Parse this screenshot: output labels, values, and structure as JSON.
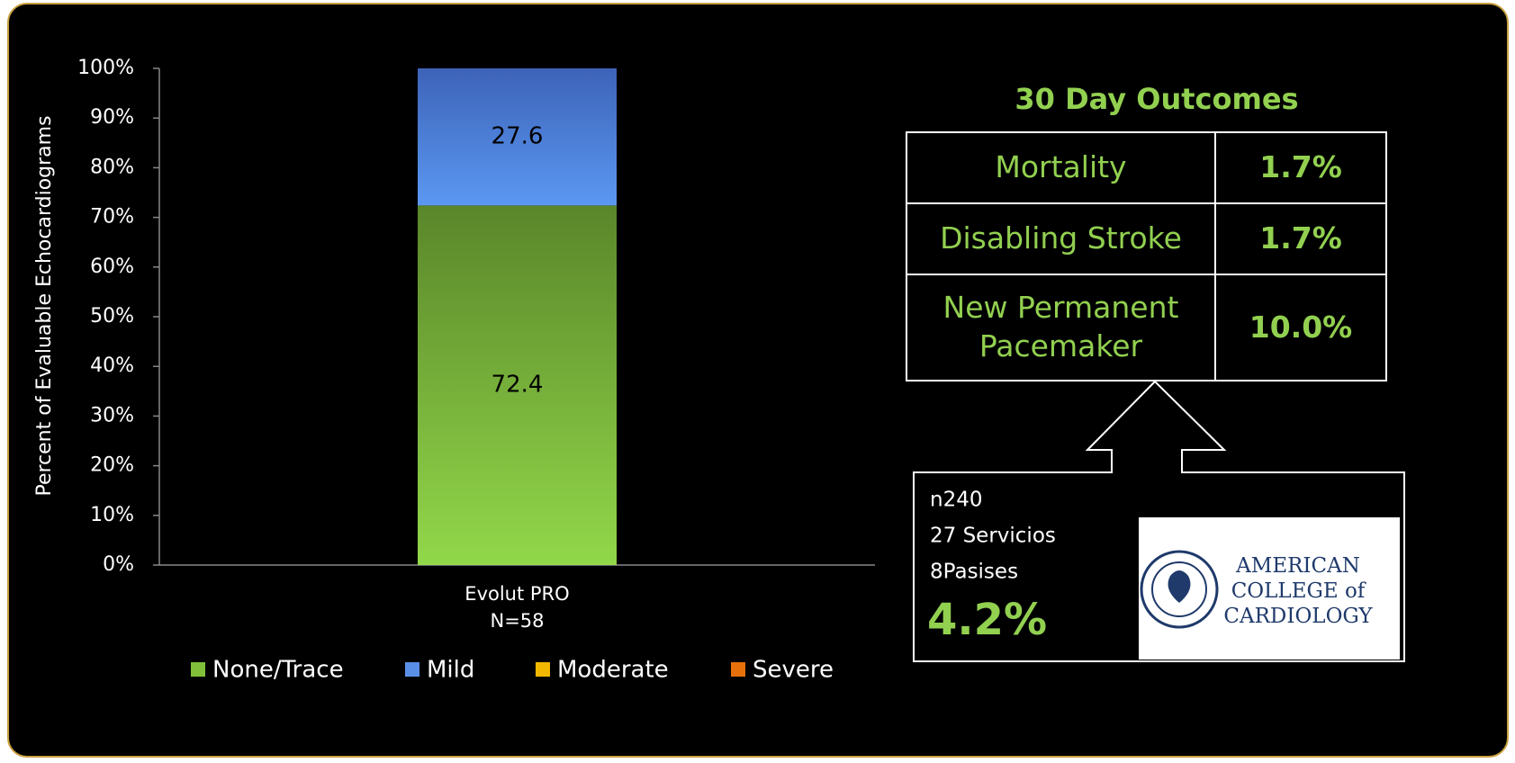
{
  "chart_data": {
    "type": "stacked_bar",
    "y_label": "Percent of Evaluable Echocardiograms",
    "categories": [
      "Evolut PRO\nN=58"
    ],
    "series": [
      {
        "name": "None/Trace",
        "color": "#7fbf3a",
        "values": [
          72.4
        ]
      },
      {
        "name": "Mild",
        "color": "#5a8fe8",
        "values": [
          27.6
        ]
      },
      {
        "name": "Moderate",
        "color": "#f2b800",
        "values": [
          0
        ]
      },
      {
        "name": "Severe",
        "color": "#e8700a",
        "values": [
          0
        ]
      }
    ],
    "ylim": [
      0,
      100
    ],
    "yticks": [
      {
        "value": 0,
        "label": "0%"
      },
      {
        "value": 10,
        "label": "10%"
      },
      {
        "value": 20,
        "label": "20%"
      },
      {
        "value": 30,
        "label": "30%"
      },
      {
        "value": 40,
        "label": "40%"
      },
      {
        "value": 50,
        "label": "50%"
      },
      {
        "value": 60,
        "label": "60%"
      },
      {
        "value": 70,
        "label": "70%"
      },
      {
        "value": 80,
        "label": "80%"
      },
      {
        "value": 90,
        "label": "90%"
      },
      {
        "value": 100,
        "label": "100%"
      }
    ],
    "legend": "bottom"
  },
  "table": {
    "title": "30 Day Outcomes",
    "rows": [
      [
        "Mortality",
        "1.7%"
      ],
      [
        "Disabling Stroke",
        "1.7%"
      ],
      [
        "New Permanent\nPacemaker",
        "10.0%"
      ]
    ]
  },
  "callout": {
    "lines": [
      "n240",
      "27 Servicios",
      "8Pasises"
    ],
    "value": "4.2%"
  },
  "logo": {
    "lines": [
      "AMERICAN",
      "COLLEGE of",
      "CARDIOLOGY"
    ]
  }
}
